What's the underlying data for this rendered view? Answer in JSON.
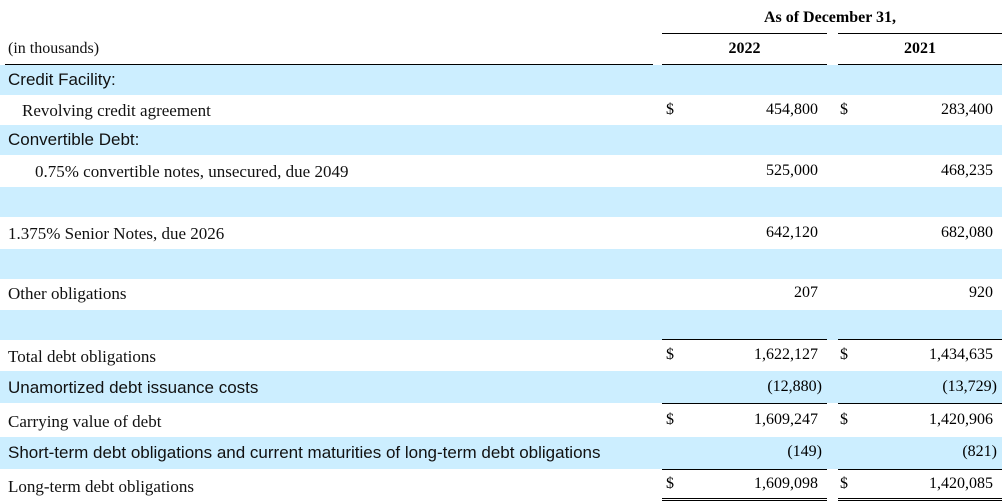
{
  "header": {
    "period_label": "As of December 31,",
    "units_label": "(in thousands)",
    "col_2022": "2022",
    "col_2021": "2021"
  },
  "currency_symbol": "$",
  "rows": {
    "credit_facility": {
      "label": "Credit Facility:"
    },
    "revolving": {
      "label": "Revolving credit agreement",
      "v2022": "454,800",
      "v2021": "283,400"
    },
    "convertible_debt": {
      "label": "Convertible Debt:"
    },
    "convertible_notes": {
      "label": "0.75% convertible notes, unsecured, due 2049",
      "v2022": "525,000",
      "v2021": "468,235"
    },
    "senior_notes": {
      "label": "1.375% Senior Notes, due 2026",
      "v2022": "642,120",
      "v2021": "682,080"
    },
    "other_obligations": {
      "label": "Other obligations",
      "v2022": "207",
      "v2021": "920"
    },
    "total_debt": {
      "label": "Total debt obligations",
      "v2022": "1,622,127",
      "v2021": "1,434,635"
    },
    "unamortized": {
      "label": "Unamortized debt issuance costs",
      "v2022": "(12,880)",
      "v2021": "(13,729)"
    },
    "carrying_value": {
      "label": "Carrying value of debt",
      "v2022": "1,609,247",
      "v2021": "1,420,906"
    },
    "short_term": {
      "label": "Short-term debt obligations and current maturities of long-term debt obligations",
      "v2022": "(149)",
      "v2021": "(821)"
    },
    "long_term": {
      "label": "Long-term debt obligations",
      "v2022": "1,609,098",
      "v2021": "1,420,085"
    }
  },
  "colors": {
    "row_shade": "#cceeff"
  }
}
